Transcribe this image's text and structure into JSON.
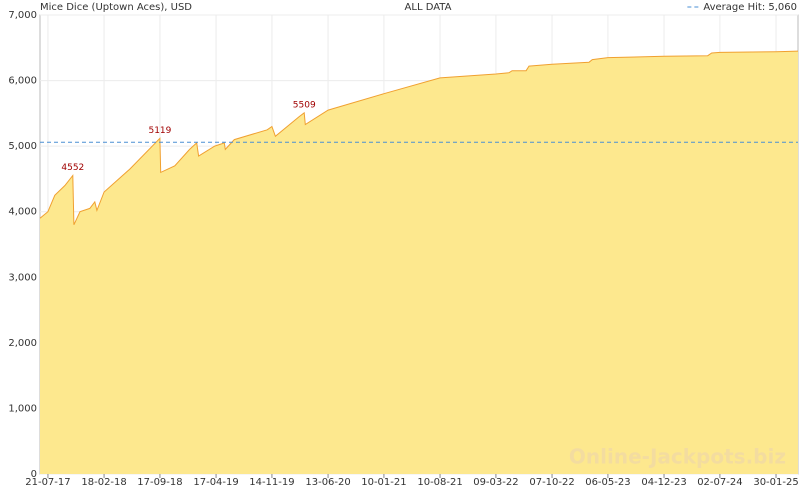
{
  "chart_data": {
    "type": "area",
    "title": "Mice Dice (Uptown Aces), USD",
    "subtitle": "ALL DATA",
    "watermark": "Online-Jackpots.biz",
    "x": [
      "21-06-17",
      "21-07-17",
      "16-08-17",
      "23-09-17",
      "23-10-17",
      "27-10-17",
      "19-11-17",
      "26-12-17",
      "14-01-18",
      "22-01-18",
      "18-02-18",
      "26-05-18",
      "17-09-18",
      "20-09-18",
      "12-11-18",
      "07-01-19",
      "03-02-19",
      "10-02-19",
      "12-04-19",
      "18-05-19",
      "22-05-19",
      "25-06-19",
      "27-10-19",
      "14-11-19",
      "27-11-19",
      "25-02-20",
      "15-03-20",
      "19-03-20",
      "13-06-20",
      "10-01-21",
      "10-08-21",
      "09-03-22",
      "28-04-22",
      "09-05-22",
      "01-07-22",
      "12-07-22",
      "07-10-22",
      "24-02-23",
      "08-03-23",
      "06-05-23",
      "04-12-23",
      "17-05-24",
      "01-06-24",
      "02-07-24",
      "30-01-25",
      "23-04-25"
    ],
    "series": [
      {
        "name": "Mice Dice (Uptown Aces)",
        "color": "#f0a030",
        "fill": "#fde88e",
        "values": [
          3900,
          4000,
          4250,
          4400,
          4552,
          3800,
          4000,
          4050,
          4150,
          4020,
          4300,
          4650,
          5119,
          4600,
          4700,
          4950,
          5050,
          4850,
          5000,
          5050,
          4950,
          5100,
          5250,
          5300,
          5150,
          5450,
          5509,
          5330,
          5550,
          5800,
          6040,
          6100,
          6120,
          6150,
          6150,
          6220,
          6250,
          6280,
          6320,
          6350,
          6370,
          6380,
          6420,
          6430,
          6440,
          6450
        ],
        "value_labels": [
          null,
          null,
          null,
          null,
          "4552",
          null,
          null,
          null,
          null,
          null,
          null,
          null,
          "5119",
          null,
          null,
          null,
          null,
          null,
          null,
          null,
          null,
          null,
          null,
          null,
          null,
          null,
          "5509",
          null,
          null,
          null,
          null,
          null,
          null,
          null,
          null,
          null,
          null,
          null,
          null,
          null,
          null,
          null,
          null,
          null,
          null,
          null
        ]
      }
    ],
    "average": {
      "label": "Average Hit: 5,060",
      "value": 5060,
      "color": "#4a8fd4"
    },
    "xlim": [
      "21-06-17",
      "23-04-25"
    ],
    "xticks": [
      "21-07-17",
      "18-02-18",
      "17-09-18",
      "17-04-19",
      "14-11-19",
      "13-06-20",
      "10-01-21",
      "10-08-21",
      "09-03-22",
      "07-10-22",
      "06-05-23",
      "04-12-23",
      "02-07-24",
      "30-01-25"
    ],
    "ylim": [
      0,
      7000
    ],
    "yticks": [
      0,
      {
        "value": 1000,
        "label": "1,000"
      },
      {
        "value": 2000,
        "label": "2,000"
      },
      {
        "value": 3000,
        "label": "3,000"
      },
      {
        "value": 4000,
        "label": "4,000"
      },
      {
        "value": 5000,
        "label": "5,000"
      },
      {
        "value": 6000,
        "label": "6,000"
      },
      {
        "value": 7000,
        "label": "7,000"
      }
    ],
    "grid": true
  }
}
